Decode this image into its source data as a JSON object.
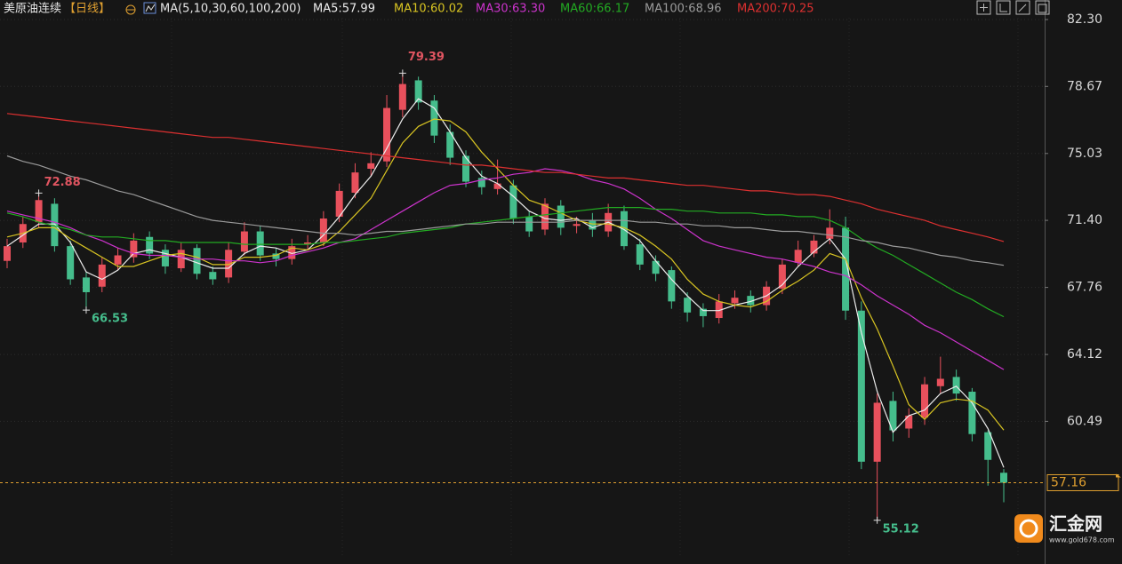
{
  "header": {
    "symbol": "美原油连续",
    "period": "【日线】",
    "ma_params": "MA(5,10,30,60,100,200)"
  },
  "chart_data": {
    "type": "candlestick",
    "open": [
      69.2,
      70.2,
      71.3,
      72.3,
      70.0,
      68.3,
      67.8,
      69.0,
      69.4,
      70.5,
      69.8,
      68.8,
      69.9,
      68.6,
      68.3,
      69.7,
      70.8,
      69.6,
      69.3,
      70.1,
      70.2,
      71.6,
      72.9,
      74.2,
      74.6,
      77.4,
      79.0,
      77.9,
      76.2,
      74.9,
      73.7,
      73.1,
      73.3,
      71.6,
      70.9,
      72.2,
      71.1,
      71.4,
      70.8,
      71.9,
      70.1,
      69.2,
      68.7,
      67.2,
      66.6,
      66.1,
      66.9,
      67.3,
      66.8,
      67.7,
      69.1,
      69.6,
      70.4,
      71.0,
      66.5,
      58.3,
      61.6,
      60.1,
      60.7,
      62.4,
      62.9,
      62.1,
      59.9,
      57.7
    ],
    "high": [
      70.4,
      71.6,
      72.88,
      72.6,
      70.3,
      68.6,
      69.4,
      69.9,
      70.7,
      70.8,
      70.1,
      70.2,
      70.1,
      68.9,
      70.2,
      71.3,
      71.1,
      69.9,
      70.4,
      70.6,
      71.9,
      73.4,
      74.5,
      75.1,
      78.2,
      79.39,
      79.2,
      78.2,
      76.6,
      75.2,
      74.1,
      74.7,
      73.6,
      71.9,
      72.6,
      72.5,
      71.6,
      71.8,
      72.3,
      72.2,
      70.4,
      69.5,
      68.9,
      67.5,
      66.9,
      67.4,
      67.6,
      67.6,
      68.1,
      69.3,
      70.3,
      70.6,
      72.0,
      71.6,
      67.0,
      62.0,
      62.1,
      61.2,
      62.9,
      64.0,
      63.3,
      62.3,
      60.0,
      57.9
    ],
    "low": [
      68.8,
      69.9,
      71.0,
      69.7,
      67.9,
      66.53,
      67.5,
      68.7,
      69.1,
      69.3,
      68.5,
      68.6,
      68.2,
      67.9,
      68.0,
      69.5,
      69.2,
      68.9,
      69.0,
      69.8,
      70.0,
      71.3,
      72.6,
      73.8,
      74.3,
      77.0,
      77.4,
      75.6,
      74.4,
      73.2,
      72.8,
      72.8,
      71.2,
      70.5,
      70.6,
      70.6,
      70.7,
      70.5,
      70.5,
      69.8,
      68.7,
      68.1,
      66.6,
      65.9,
      65.6,
      65.8,
      66.6,
      66.4,
      66.5,
      67.4,
      68.9,
      69.4,
      70.1,
      66.0,
      57.9,
      55.12,
      59.4,
      59.6,
      60.3,
      62.0,
      61.6,
      59.4,
      57.0,
      56.1
    ],
    "close": [
      70.0,
      71.2,
      72.5,
      70.0,
      68.2,
      67.5,
      69.0,
      69.5,
      70.3,
      69.6,
      68.9,
      69.8,
      68.5,
      68.2,
      69.8,
      70.8,
      69.5,
      69.3,
      70.0,
      70.2,
      71.5,
      73.0,
      74.0,
      74.5,
      77.5,
      78.8,
      77.8,
      76.0,
      74.8,
      73.5,
      73.2,
      73.4,
      71.5,
      70.8,
      72.3,
      71.0,
      71.2,
      70.9,
      71.8,
      70.0,
      69.0,
      68.5,
      67.0,
      66.4,
      66.2,
      67.0,
      67.2,
      66.8,
      67.8,
      69.0,
      69.8,
      70.3,
      71.0,
      66.5,
      58.3,
      61.5,
      60.0,
      60.8,
      62.5,
      62.8,
      62.0,
      59.8,
      58.4,
      57.16
    ],
    "up_color": "#e8505c",
    "down_color": "#45bd8c",
    "series": [
      {
        "name": "MA5:57.99",
        "color": "#ececec",
        "values": [
          70.0,
          70.6,
          71.2,
          71.2,
          70.2,
          68.6,
          68.2,
          68.7,
          69.6,
          69.8,
          69.6,
          69.4,
          69.1,
          68.8,
          68.8,
          69.6,
          70.0,
          69.9,
          69.6,
          69.8,
          70.6,
          71.6,
          72.8,
          73.8,
          75.3,
          76.9,
          78.0,
          77.5,
          76.2,
          74.8,
          73.8,
          73.4,
          72.7,
          71.9,
          71.5,
          71.4,
          71.5,
          71.0,
          71.3,
          70.9,
          70.3,
          69.2,
          68.2,
          67.3,
          66.5,
          66.5,
          66.8,
          67.0,
          67.3,
          67.9,
          68.9,
          69.7,
          70.4,
          69.3,
          65.3,
          62.1,
          59.9,
          60.8,
          61.1,
          62.0,
          62.4,
          61.5,
          60.1,
          57.99
        ]
      },
      {
        "name": "MA10:60.02",
        "color": "#d8c422",
        "values": [
          70.5,
          70.7,
          71.0,
          71.0,
          70.4,
          69.9,
          69.4,
          68.9,
          68.9,
          69.2,
          69.5,
          69.6,
          69.4,
          69.0,
          69.0,
          69.4,
          69.4,
          69.5,
          69.9,
          69.8,
          70.1,
          70.8,
          71.7,
          72.6,
          74.1,
          75.6,
          76.5,
          76.9,
          76.8,
          76.2,
          75.1,
          74.2,
          73.3,
          72.5,
          72.2,
          71.8,
          71.4,
          71.2,
          71.2,
          71.0,
          70.6,
          70.0,
          69.3,
          68.2,
          67.4,
          67.0,
          66.8,
          66.7,
          67.0,
          67.6,
          68.1,
          68.7,
          69.6,
          69.3,
          67.2,
          65.5,
          63.5,
          61.4,
          60.6,
          61.5,
          61.7,
          61.6,
          61.1,
          60.02
        ]
      },
      {
        "name": "MA30:63.30",
        "color": "#cc33cc",
        "values": [
          71.9,
          71.7,
          71.5,
          71.3,
          71.0,
          70.6,
          70.3,
          69.9,
          69.6,
          69.5,
          69.5,
          69.4,
          69.3,
          69.3,
          69.2,
          69.2,
          69.1,
          69.2,
          69.5,
          69.7,
          69.9,
          70.2,
          70.4,
          70.9,
          71.4,
          71.9,
          72.4,
          72.9,
          73.3,
          73.4,
          73.6,
          73.7,
          73.9,
          74.0,
          74.2,
          74.1,
          73.9,
          73.6,
          73.4,
          73.1,
          72.6,
          72.0,
          71.5,
          70.9,
          70.3,
          70.0,
          69.8,
          69.6,
          69.4,
          69.3,
          69.1,
          68.9,
          68.6,
          68.4,
          67.9,
          67.3,
          66.8,
          66.3,
          65.7,
          65.3,
          64.8,
          64.3,
          63.8,
          63.3
        ]
      },
      {
        "name": "MA60:66.17",
        "color": "#22aa22",
        "values": [
          71.8,
          71.6,
          71.3,
          71.1,
          70.9,
          70.6,
          70.5,
          70.5,
          70.4,
          70.3,
          70.3,
          70.2,
          70.2,
          70.2,
          70.2,
          70.1,
          70.1,
          70.1,
          70.1,
          70.1,
          70.2,
          70.2,
          70.3,
          70.4,
          70.5,
          70.7,
          70.8,
          70.9,
          71.0,
          71.2,
          71.3,
          71.4,
          71.5,
          71.6,
          71.7,
          71.8,
          71.9,
          72.0,
          72.1,
          72.1,
          72.1,
          72.0,
          72.0,
          71.9,
          71.9,
          71.8,
          71.8,
          71.8,
          71.7,
          71.7,
          71.6,
          71.6,
          71.4,
          71.0,
          70.4,
          69.9,
          69.5,
          69.0,
          68.5,
          68.0,
          67.5,
          67.1,
          66.6,
          66.17
        ]
      },
      {
        "name": "MA100:68.96",
        "color": "#9a9a9a",
        "values": [
          74.9,
          74.6,
          74.4,
          74.1,
          73.8,
          73.6,
          73.3,
          73.0,
          72.8,
          72.5,
          72.2,
          71.9,
          71.6,
          71.4,
          71.3,
          71.2,
          71.1,
          71.0,
          70.9,
          70.8,
          70.7,
          70.7,
          70.6,
          70.7,
          70.8,
          70.8,
          70.9,
          71.0,
          71.1,
          71.2,
          71.2,
          71.3,
          71.3,
          71.3,
          71.3,
          71.3,
          71.4,
          71.4,
          71.4,
          71.4,
          71.3,
          71.3,
          71.2,
          71.2,
          71.1,
          71.1,
          71.0,
          71.0,
          70.9,
          70.8,
          70.8,
          70.7,
          70.6,
          70.5,
          70.3,
          70.2,
          70.0,
          69.9,
          69.7,
          69.5,
          69.4,
          69.2,
          69.1,
          68.96
        ]
      },
      {
        "name": "MA200:70.25",
        "color": "#dd3030",
        "values": [
          77.2,
          77.1,
          77.0,
          76.9,
          76.8,
          76.7,
          76.6,
          76.5,
          76.4,
          76.3,
          76.2,
          76.1,
          76.0,
          75.9,
          75.9,
          75.8,
          75.7,
          75.6,
          75.5,
          75.4,
          75.3,
          75.2,
          75.1,
          75.0,
          74.9,
          74.8,
          74.7,
          74.6,
          74.5,
          74.4,
          74.4,
          74.3,
          74.2,
          74.1,
          74.0,
          74.0,
          73.9,
          73.8,
          73.7,
          73.7,
          73.6,
          73.5,
          73.4,
          73.3,
          73.3,
          73.2,
          73.1,
          73.0,
          73.0,
          72.9,
          72.8,
          72.8,
          72.7,
          72.5,
          72.3,
          72.0,
          71.8,
          71.6,
          71.4,
          71.1,
          70.9,
          70.7,
          70.5,
          70.25
        ]
      }
    ],
    "ylim": [
      53.23,
      83.36
    ],
    "yticks": [
      {
        "value": 82.3,
        "label": "82.30"
      },
      78.67,
      75.03,
      {
        "value": 71.4,
        "label": "71.40"
      },
      67.76,
      64.12,
      60.49
    ],
    "grid": true,
    "last_price_color": "#e0a030"
  },
  "watermark": {
    "name": "汇金网",
    "url": "www.gold678.com"
  }
}
